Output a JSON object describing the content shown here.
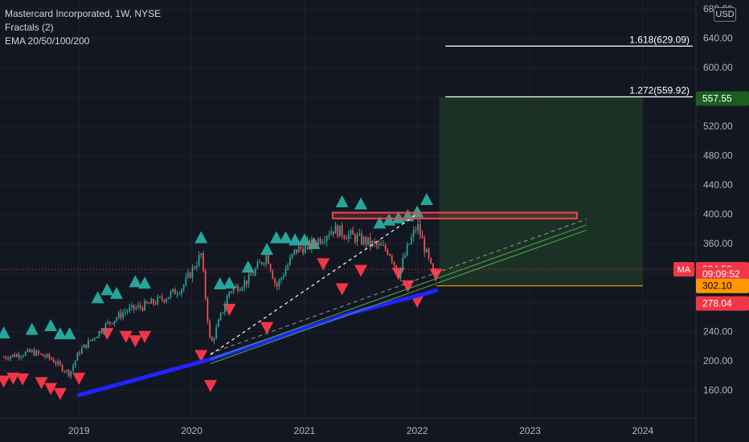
{
  "header": {
    "symbol_line": "Mastercard Incorporated, 1W, NYSE",
    "indicator_1": "Fractals (2)",
    "indicator_2": "EMA 20/50/100/200",
    "currency": "USD"
  },
  "colors": {
    "background": "#131722",
    "grid": "#1e222d",
    "up": "#26a69a",
    "down": "#ef5350",
    "ema": "#2323ff",
    "fractal_up": "#26a69a",
    "fractal_down": "#f23645",
    "target_zone": "#1c3326",
    "fib_line": "#ffffff",
    "stop_line": "#ff9800",
    "resistance_box": "#e84a4f",
    "channel": "#4caf50"
  },
  "chart_data": {
    "type": "candlestick",
    "symbol": "MA",
    "timeframe": "1W",
    "x_axis": {
      "ticks": [
        "2019",
        "2020",
        "2021",
        "2022",
        "2023",
        "2024"
      ]
    },
    "y_axis": {
      "range": [
        122,
        692
      ],
      "ticks": [
        "160.00",
        "200.00",
        "240.00",
        "280.00",
        "320.00",
        "360.00",
        "400.00",
        "440.00",
        "480.00",
        "520.00",
        "560.00",
        "600.00",
        "640.00",
        "680.00"
      ]
    },
    "price_path": [
      [
        "2018-05",
        205
      ],
      [
        "2018-08",
        212
      ],
      [
        "2018-10",
        203
      ],
      [
        "2018-12",
        182
      ],
      [
        "2019-01",
        212
      ],
      [
        "2019-04",
        250
      ],
      [
        "2019-06",
        268
      ],
      [
        "2019-08",
        275
      ],
      [
        "2019-10",
        285
      ],
      [
        "2019-12",
        300
      ],
      [
        "2020-02",
        345
      ],
      [
        "2020-03",
        220
      ],
      [
        "2020-05",
        295
      ],
      [
        "2020-07",
        310
      ],
      [
        "2020-09",
        345
      ],
      [
        "2020-10",
        300
      ],
      [
        "2020-12",
        350
      ],
      [
        "2021-02",
        360
      ],
      [
        "2021-04",
        380
      ],
      [
        "2021-06",
        370
      ],
      [
        "2021-08",
        360
      ],
      [
        "2021-10",
        350
      ],
      [
        "2021-11",
        318
      ],
      [
        "2021-12",
        355
      ],
      [
        "2022-01",
        385
      ],
      [
        "2022-02",
        345
      ],
      [
        "2022-03",
        305
      ]
    ],
    "ema_200": [
      [
        "2019-01",
        153
      ],
      [
        "2020-03",
        202
      ],
      [
        "2021-06",
        265
      ],
      [
        "2022-02",
        292
      ],
      [
        "2022-03",
        296
      ]
    ],
    "fractals_up": [
      [
        "2018-05",
        238
      ],
      [
        "2018-08",
        243
      ],
      [
        "2018-10",
        248
      ],
      [
        "2018-11",
        237
      ],
      [
        "2018-12",
        237
      ],
      [
        "2019-03",
        286
      ],
      [
        "2019-04",
        297
      ],
      [
        "2019-05",
        292
      ],
      [
        "2019-07",
        308
      ],
      [
        "2019-08",
        306
      ],
      [
        "2020-02",
        368
      ],
      [
        "2020-04",
        305
      ],
      [
        "2020-05",
        306
      ],
      [
        "2020-07",
        328
      ],
      [
        "2020-09",
        352
      ],
      [
        "2020-10",
        368
      ],
      [
        "2020-11",
        368
      ],
      [
        "2020-12",
        365
      ],
      [
        "2021-01",
        365
      ],
      [
        "2021-02",
        360
      ],
      [
        "2021-05",
        417
      ],
      [
        "2021-07",
        414
      ],
      [
        "2021-09",
        388
      ],
      [
        "2021-10",
        392
      ],
      [
        "2021-11",
        395
      ],
      [
        "2021-12",
        398
      ],
      [
        "2022-01",
        403
      ],
      [
        "2022-02",
        420
      ]
    ],
    "fractals_down": [
      [
        "2018-05",
        172
      ],
      [
        "2018-06",
        176
      ],
      [
        "2018-07",
        175
      ],
      [
        "2018-09",
        170
      ],
      [
        "2018-10",
        162
      ],
      [
        "2018-11",
        155
      ],
      [
        "2019-01",
        176
      ],
      [
        "2019-04",
        237
      ],
      [
        "2019-06",
        233
      ],
      [
        "2019-07",
        227
      ],
      [
        "2019-08",
        233
      ],
      [
        "2020-02",
        207
      ],
      [
        "2020-03",
        166
      ],
      [
        "2020-05",
        270
      ],
      [
        "2020-09",
        245
      ],
      [
        "2021-03",
        332
      ],
      [
        "2021-05",
        298
      ],
      [
        "2021-07",
        323
      ],
      [
        "2021-11",
        319
      ],
      [
        "2021-12",
        302
      ],
      [
        "2022-01",
        281
      ],
      [
        "2022-03",
        318
      ]
    ],
    "annotations": {
      "fib_1618": {
        "label": "1.618(629.09)",
        "value": 629.09
      },
      "fib_1272": {
        "label": "1.272(559.92)",
        "value": 559.92
      },
      "target_price": 557.55,
      "stop_price": 302.1,
      "resistance_zone": [
        394,
        402
      ],
      "channel_lines": [
        [
          [
            "2020-03",
            202
          ],
          [
            "2023-07",
            385
          ]
        ],
        [
          [
            "2020-03",
            210
          ],
          [
            "2023-07",
            393
          ]
        ],
        [
          [
            "2020-03",
            196
          ],
          [
            "2023-07",
            378
          ]
        ]
      ],
      "dashed_lines": [
        [
          [
            "2020-03",
            208
          ],
          [
            "2022-01",
            400
          ]
        ]
      ]
    },
    "price_labels": [
      {
        "text": "557.55",
        "bg": "#1b5e20",
        "value": 557.55
      },
      {
        "text": "324.59",
        "bg": "#f23645",
        "value": 324.59
      },
      {
        "text": "09:09:52",
        "bg": "#f23645",
        "value": 318
      },
      {
        "text": "302.10",
        "bg": "#ff9800",
        "value": 302.1
      },
      {
        "text": "278.04",
        "bg": "#f23645",
        "value": 278.04
      }
    ],
    "symbol_badge": "MA",
    "last_price": 324.59
  }
}
